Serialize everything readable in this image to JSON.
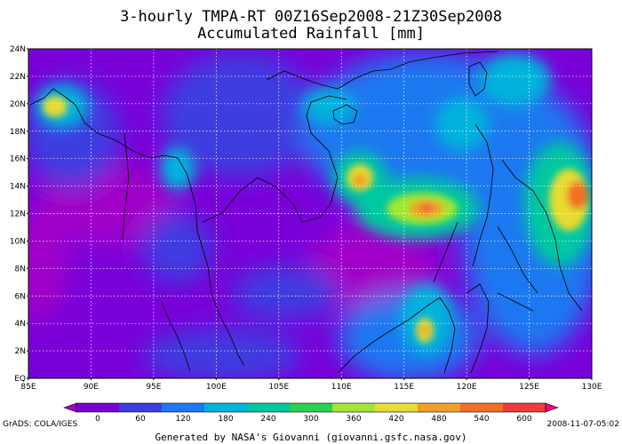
{
  "title": {
    "line1": "3-hourly TMPA-RT 00Z16Sep2008-21Z30Sep2008",
    "line2": "Accumulated Rainfall [mm]"
  },
  "lat_labels": [
    "24N",
    "22N",
    "20N",
    "18N",
    "16N",
    "14N",
    "12N",
    "10N",
    "8N",
    "6N",
    "4N",
    "2N",
    "EQ"
  ],
  "lon_labels": [
    "85E",
    "90E",
    "95E",
    "100E",
    "105E",
    "110E",
    "115E",
    "120E",
    "125E",
    "130E"
  ],
  "colorbar": {
    "ticks": [
      "0",
      "60",
      "120",
      "180",
      "240",
      "300",
      "360",
      "420",
      "480",
      "540",
      "600"
    ],
    "colors": [
      "#a000c8",
      "#7a00d8",
      "#3d3de0",
      "#1e78f0",
      "#00b4dc",
      "#00c8a0",
      "#28d250",
      "#a0e632",
      "#e6dc32",
      "#f0a028",
      "#f06e28",
      "#f03c3c",
      "#f00082"
    ]
  },
  "footer": {
    "credit": "GrADS: COLA/IGES",
    "timestamp": "2008-11-07-05:02",
    "generated": "Generated by NASA's Giovanni (giovanni.gsfc.nasa.gov)"
  },
  "map": {
    "lon_range": [
      85,
      130
    ],
    "lat_range": [
      0,
      24
    ]
  }
}
